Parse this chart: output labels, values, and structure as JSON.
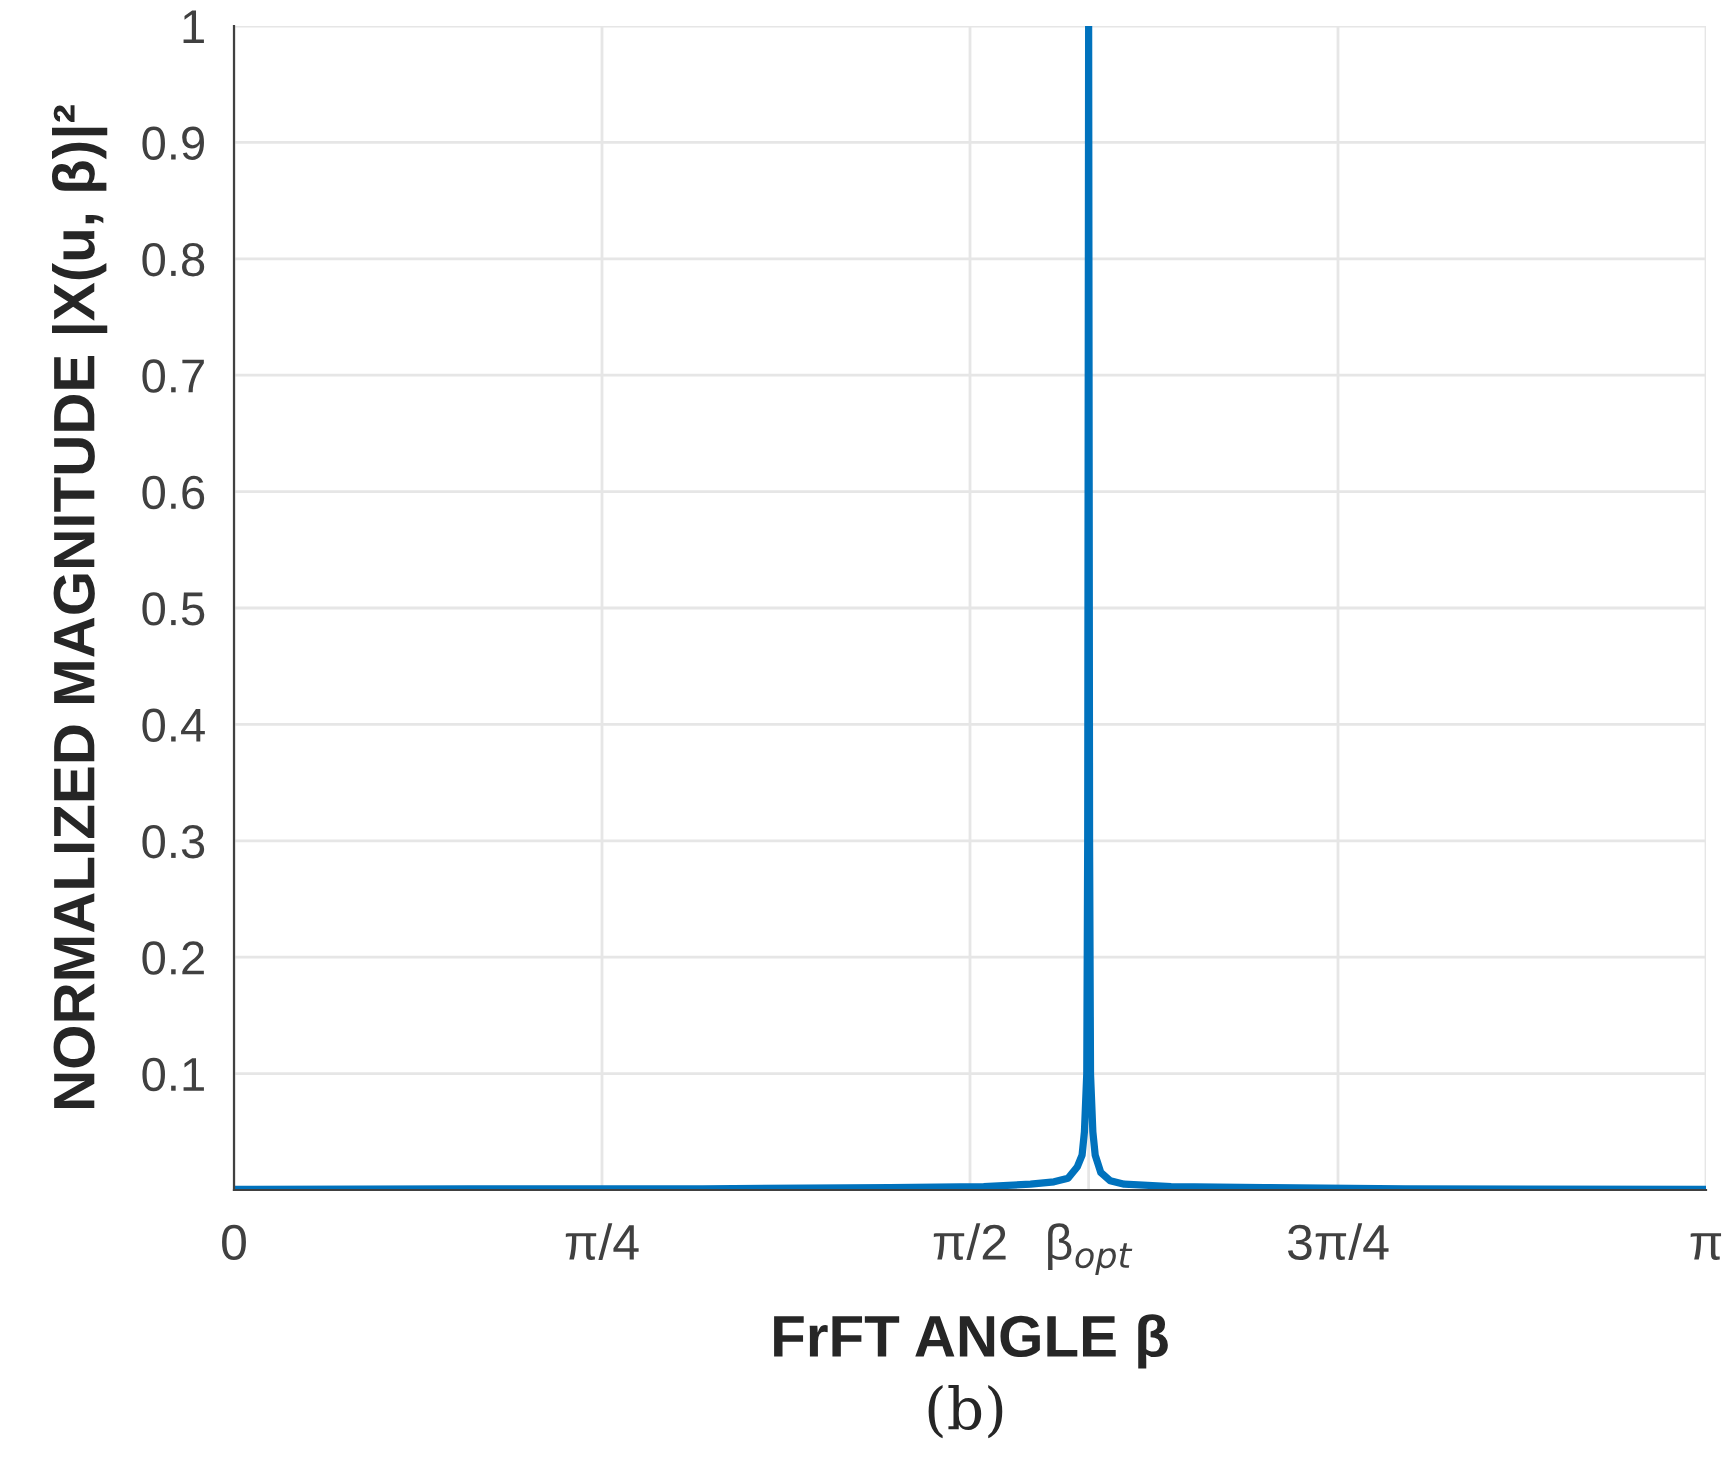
{
  "chart_data": {
    "type": "line",
    "xlabel": "FrFT ANGLE β",
    "ylabel": "NORMALIZED MAGNITUDE |X(u, β)|²",
    "annotations": [
      "(b)"
    ],
    "x": [
      0,
      0.5,
      1.0,
      1.4,
      1.6,
      1.7,
      1.75,
      1.78,
      1.8,
      1.81,
      1.815,
      1.82,
      1.822,
      1.824,
      1.826,
      1.828,
      1.833,
      1.838,
      1.85,
      1.87,
      1.9,
      2.0,
      2.2,
      2.5,
      3.1416
    ],
    "series": [
      {
        "color": "#0072bd",
        "values": [
          0.0005,
          0.001,
          0.001,
          0.002,
          0.003,
          0.005,
          0.007,
          0.01,
          0.02,
          0.03,
          0.05,
          0.1,
          0.3,
          1,
          0.3,
          0.1,
          0.05,
          0.03,
          0.015,
          0.008,
          0.005,
          0.003,
          0.002,
          0.001,
          0.0005
        ]
      }
    ],
    "xlim": [
      0,
      3.1416
    ],
    "ylim": [
      0,
      1
    ],
    "xticks": [
      0,
      {
        "value": 0.7854,
        "label": "π/4"
      },
      {
        "value": 1.5708,
        "label": "π/2"
      },
      {
        "value": 1.824,
        "label": "β$_{opt}$"
      },
      {
        "value": 2.3562,
        "label": "3π/4"
      },
      {
        "value": 3.1416,
        "label": "π"
      }
    ],
    "yticks": [
      0.1,
      0.2,
      0.3,
      0.4,
      0.5,
      0.6,
      0.7,
      0.8,
      0.9,
      1
    ],
    "grid": true,
    "marker": "none",
    "line_style": "solid"
  }
}
